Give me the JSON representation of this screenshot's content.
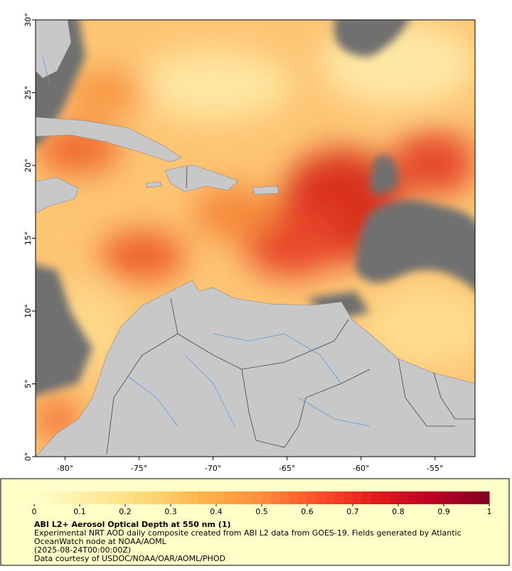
{
  "map": {
    "xlim": [
      -82,
      -52.3
    ],
    "ylim": [
      0,
      30
    ],
    "xticks": [
      {
        "value": -80,
        "label": "-80°"
      },
      {
        "value": -75,
        "label": "-75°"
      },
      {
        "value": -70,
        "label": "-70°"
      },
      {
        "value": -65,
        "label": "-65°"
      },
      {
        "value": -60,
        "label": "-60°"
      },
      {
        "value": -55,
        "label": "-55°"
      }
    ],
    "yticks": [
      {
        "value": 0,
        "label": "0°"
      },
      {
        "value": 5,
        "label": "5°"
      },
      {
        "value": 10,
        "label": "10°"
      },
      {
        "value": 15,
        "label": "15°"
      },
      {
        "value": 20,
        "label": "20°"
      },
      {
        "value": 25,
        "label": "25°"
      },
      {
        "value": 30,
        "label": "30°"
      }
    ]
  },
  "colorbar": {
    "range": [
      0,
      1
    ],
    "ticks": [
      0,
      0.1,
      0.2,
      0.3,
      0.4,
      0.5,
      0.6,
      0.7,
      0.8,
      0.9,
      1
    ],
    "colormap": [
      "#ffffcc",
      "#ffeda0",
      "#fed976",
      "#feb24c",
      "#fd8d3c",
      "#fc4e2a",
      "#e31a1c",
      "#bd0026",
      "#800026"
    ]
  },
  "caption": {
    "title": "ABI L2+ Aerosol Optical Depth at 550 nm (1)",
    "lines": [
      "Experimental NRT AOD daily composite created from ABI L2 data from GOES-19. Fields generated by Atlantic",
      "OceanWatch node at NOAA/AOML",
      "(2025-08-24T00:00:00Z)",
      "Data courtesy of USDOC/NOAA/OAR/AOML/PHOD"
    ]
  }
}
